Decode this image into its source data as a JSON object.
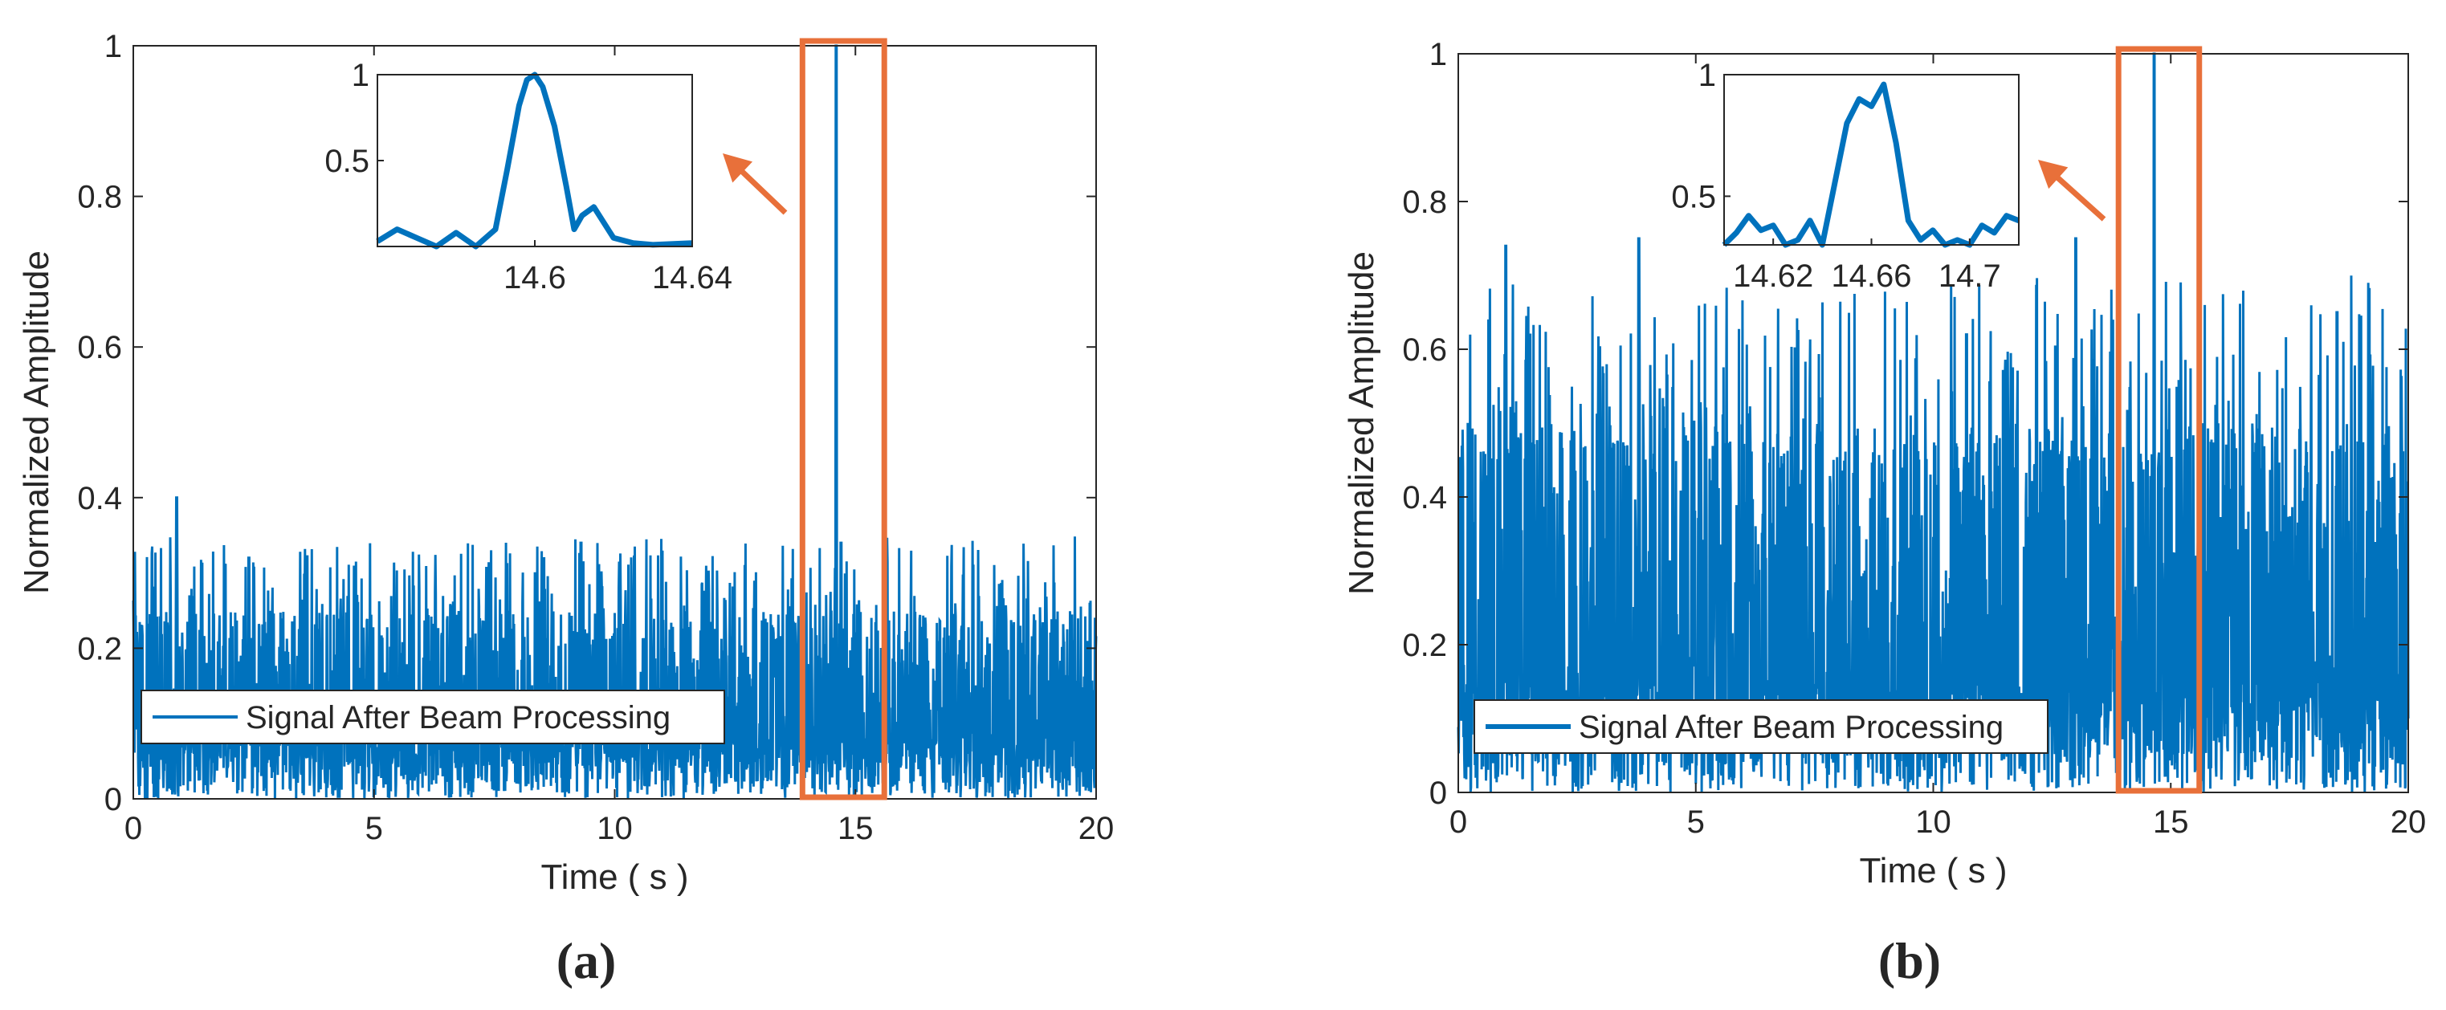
{
  "figure": {
    "panels": [
      {
        "label": "(a)"
      },
      {
        "label": "(b)"
      }
    ]
  },
  "colors": {
    "signal": "#0072BD",
    "highlight": "#E8703A",
    "axis": "#262626"
  },
  "chart_data": [
    {
      "panel": "(a)",
      "type": "line",
      "xlabel": "Time ( s )",
      "ylabel": "Normalized Amplitude",
      "xlim": [
        0,
        20
      ],
      "ylim": [
        0,
        1
      ],
      "xticks": [
        "0",
        "5",
        "10",
        "15",
        "20"
      ],
      "yticks": [
        "0",
        "0.2",
        "0.4",
        "0.6",
        "0.8",
        "1"
      ],
      "legend": {
        "entries": [
          "Signal After Beam Processing"
        ],
        "position": "lower-left"
      },
      "series": [
        {
          "name": "Signal After Beam Processing",
          "description_values": {
            "noise_floor_typical": 0.08,
            "noise_peak_typical": 0.25,
            "peak_time": 14.6,
            "peak_value": 1.0,
            "notable_spikes": [
              [
                0.9,
                0.4
              ],
              [
                2.4,
                0.32
              ],
              [
                9.3,
                0.34
              ],
              [
                13.9,
                0.46
              ],
              [
                14.7,
                0.34
              ]
            ]
          }
        }
      ],
      "highlight_box": {
        "x": [
          13.9,
          15.6
        ],
        "y": [
          0,
          1
        ]
      },
      "inset": {
        "xlim": [
          14.56,
          14.64
        ],
        "ylim": [
          0,
          1
        ],
        "xticks": [
          "14.6",
          "14.64"
        ],
        "yticks": [
          "0.5",
          "1"
        ],
        "x": [
          14.56,
          14.565,
          14.57,
          14.575,
          14.58,
          14.585,
          14.59,
          14.593,
          14.596,
          14.598,
          14.6,
          14.602,
          14.605,
          14.608,
          14.61,
          14.612,
          14.615,
          14.62,
          14.625,
          14.63,
          14.64
        ],
        "y": [
          0.03,
          0.1,
          0.05,
          0.0,
          0.08,
          0.0,
          0.1,
          0.45,
          0.82,
          0.97,
          1.0,
          0.93,
          0.7,
          0.35,
          0.1,
          0.18,
          0.23,
          0.05,
          0.02,
          0.01,
          0.02
        ]
      }
    },
    {
      "panel": "(b)",
      "type": "line",
      "xlabel": "Time ( s )",
      "ylabel": "Normalized Amplitude",
      "xlim": [
        0,
        20
      ],
      "ylim": [
        0,
        1
      ],
      "xticks": [
        "0",
        "5",
        "10",
        "15",
        "20"
      ],
      "yticks": [
        "0",
        "0.2",
        "0.4",
        "0.6",
        "0.8",
        "1"
      ],
      "legend": {
        "entries": [
          "Signal After Beam Processing"
        ],
        "position": "lower-left"
      },
      "series": [
        {
          "name": "Signal After Beam Processing",
          "description_values": {
            "noise_floor_typical": 0.15,
            "noise_peak_typical": 0.5,
            "peak_time": 14.65,
            "peak_value": 1.0,
            "notable_spikes": [
              [
                1.0,
                0.74
              ],
              [
                3.8,
                0.75
              ],
              [
                13.0,
                0.75
              ],
              [
                18.5,
                0.65
              ],
              [
                10.7,
                0.62
              ]
            ]
          }
        }
      ],
      "highlight_box": {
        "x": [
          13.9,
          15.6
        ],
        "y": [
          0,
          1
        ]
      },
      "inset": {
        "xlim": [
          14.6,
          14.72
        ],
        "ylim": [
          0.3,
          1
        ],
        "xticks": [
          "14.62",
          "14.66",
          "14.7"
        ],
        "yticks": [
          "0.5",
          "1"
        ],
        "x": [
          14.6,
          14.605,
          14.61,
          14.615,
          14.62,
          14.625,
          14.63,
          14.635,
          14.64,
          14.645,
          14.65,
          14.655,
          14.66,
          14.665,
          14.67,
          14.675,
          14.68,
          14.685,
          14.69,
          14.695,
          14.7,
          14.705,
          14.71,
          14.715,
          14.72
        ],
        "y": [
          0.3,
          0.35,
          0.42,
          0.36,
          0.38,
          0.3,
          0.32,
          0.4,
          0.3,
          0.55,
          0.8,
          0.9,
          0.87,
          0.96,
          0.72,
          0.4,
          0.32,
          0.36,
          0.3,
          0.32,
          0.3,
          0.38,
          0.35,
          0.42,
          0.4
        ]
      }
    }
  ]
}
